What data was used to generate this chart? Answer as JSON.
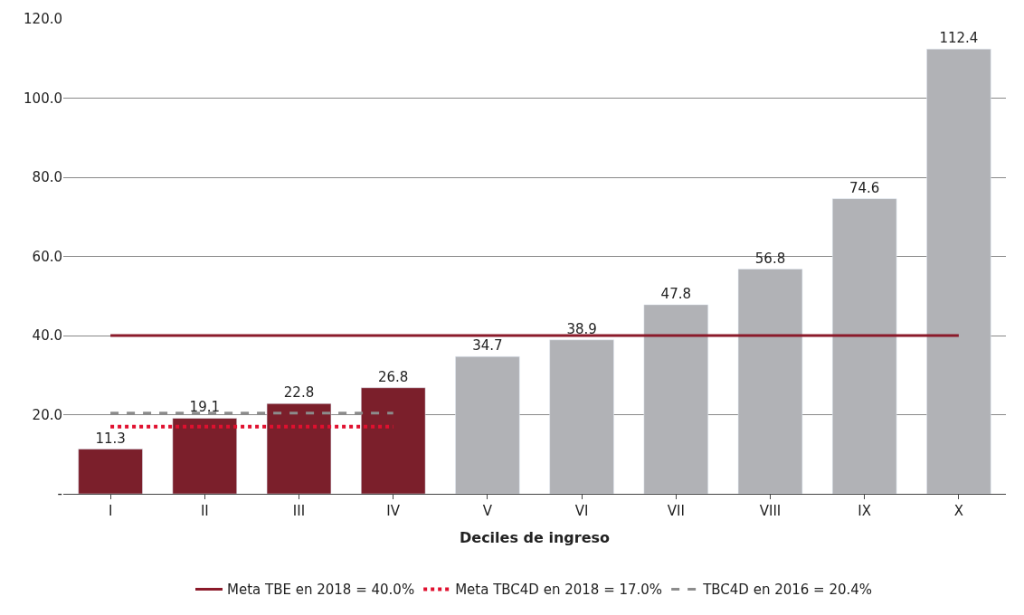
{
  "chart_data": {
    "type": "bar",
    "xlabel": "Deciles de ingreso",
    "categories": [
      "I",
      "II",
      "III",
      "IV",
      "V",
      "VI",
      "VII",
      "VIII",
      "IX",
      "X"
    ],
    "series": [
      {
        "data_labels": true,
        "colors": [
          "#7b1f2b",
          "#7b1f2b",
          "#7b1f2b",
          "#7b1f2b",
          "#b1b2b6",
          "#b1b2b6",
          "#b1b2b6",
          "#b1b2b6",
          "#b1b2b6",
          "#b1b2b6"
        ],
        "values": [
          11.3,
          19.1,
          22.8,
          26.8,
          34.7,
          38.9,
          47.8,
          56.8,
          74.6,
          112.4
        ]
      },
      {
        "type": "line",
        "name": "Meta TBE en 2018 = 40.0%",
        "color": "#8b1a2a",
        "line_style": "solid",
        "values": [
          40,
          40,
          40,
          40,
          40,
          40,
          40,
          40,
          40,
          40
        ]
      },
      {
        "type": "line",
        "name": "Meta TBC4D en 2018 = 17.0%",
        "color": "#e0102f",
        "line_style": "dotted",
        "values": [
          17,
          17,
          17,
          17,
          null,
          null,
          null,
          null,
          null,
          null
        ]
      },
      {
        "type": "line",
        "name": "TBC4D en 2016 = 20.4%",
        "color": "#8c8c8c",
        "line_style": "dashed",
        "values": [
          20.4,
          20.4,
          20.4,
          20.4,
          null,
          null,
          null,
          null,
          null,
          null
        ]
      }
    ],
    "ylim": [
      0,
      120
    ],
    "yticks": [
      {
        "value": 0,
        "label": "-"
      },
      {
        "value": 20,
        "label": "20.0"
      },
      {
        "value": 40,
        "label": "40.0"
      },
      {
        "value": 60,
        "label": "60.0"
      },
      {
        "value": 80,
        "label": "80.0"
      },
      {
        "value": 100,
        "label": "100.0"
      },
      {
        "value": 120,
        "label": "120.0"
      }
    ],
    "grid": "y",
    "legend": "bottom"
  }
}
